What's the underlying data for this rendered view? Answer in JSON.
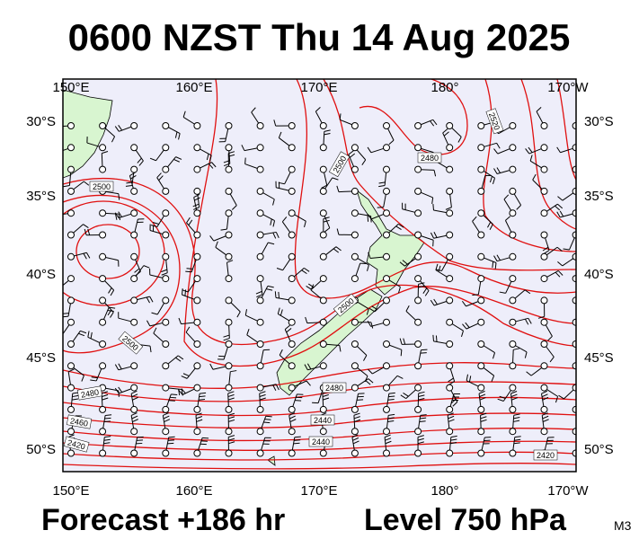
{
  "title": "0600 NZST Thu 14 Aug 2025",
  "lon_labels": [
    "150°E",
    "160°E",
    "170°E",
    "180°",
    "170°W"
  ],
  "lat_labels": [
    "30°S",
    "35°S",
    "40°S",
    "45°S",
    "50°S"
  ],
  "contour_labels": [
    2500,
    2500,
    2480,
    2520,
    2500,
    2500,
    2480,
    2480,
    2460,
    2440,
    2440,
    2420,
    2420
  ],
  "footer": {
    "forecast": "Forecast +186 hr",
    "level": "Level 750 hPa",
    "model": "M3"
  }
}
